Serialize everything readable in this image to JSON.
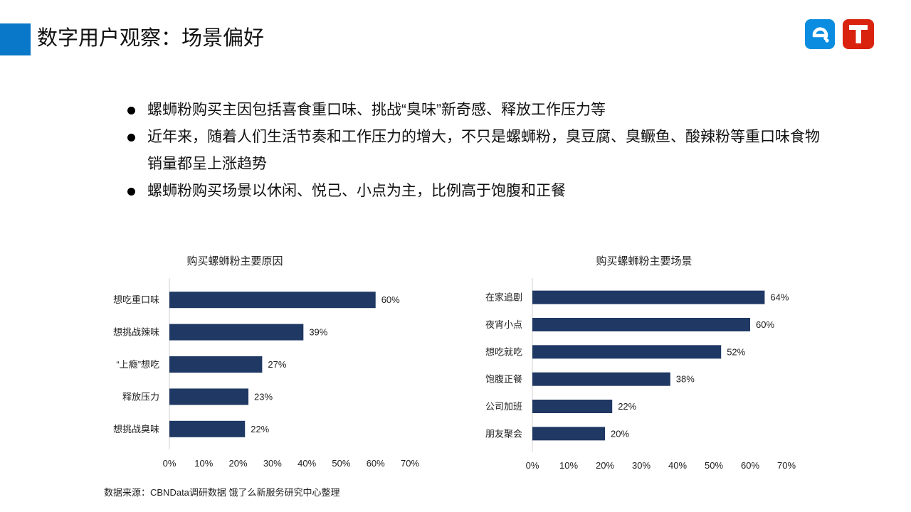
{
  "header": {
    "title": "数字用户观察：场景偏好",
    "accent_color": "#0a78c8",
    "logos": [
      {
        "icon": "eleme-logo-icon",
        "color": "#0a8de0"
      },
      {
        "icon": "t-logo-icon",
        "color": "#d9230f"
      }
    ]
  },
  "bullets": [
    "螺蛳粉购买主因包括喜食重口味、挑战“臭味”新奇感、释放工作压力等",
    "近年来，随着人们生活节奏和工作压力的增大，不只是螺蛳粉，臭豆腐、臭鳜鱼、酸辣粉等重口味食物销量都呈上涨趋势",
    "螺蛳粉购买场景以休闲、悦己、小点为主，比例高于饱腹和正餐"
  ],
  "chart_data": [
    {
      "type": "bar",
      "orientation": "horizontal",
      "title": "购买螺蛳粉主要原因",
      "categories": [
        "想吃重口味",
        "想挑战辣味",
        "“上瘾”想吃",
        "释放压力",
        "想挑战臭味"
      ],
      "values": [
        60,
        39,
        27,
        23,
        22
      ],
      "data_labels": [
        "60%",
        "39%",
        "27%",
        "23%",
        "22%"
      ],
      "xlim": [
        0,
        70
      ],
      "xticks": [
        "0%",
        "10%",
        "20%",
        "30%",
        "40%",
        "50%",
        "60%",
        "70%"
      ],
      "bar_color": "#1f3864",
      "grid": false
    },
    {
      "type": "bar",
      "orientation": "horizontal",
      "title": "购买螺蛳粉主要场景",
      "categories": [
        "在家追剧",
        "夜宵小点",
        "想吃就吃",
        "饱腹正餐",
        "公司加班",
        "朋友聚会"
      ],
      "values": [
        64,
        60,
        52,
        38,
        22,
        20
      ],
      "data_labels": [
        "64%",
        "60%",
        "52%",
        "38%",
        "22%",
        "20%"
      ],
      "xlim": [
        0,
        70
      ],
      "xticks": [
        "0%",
        "10%",
        "20%",
        "30%",
        "40%",
        "50%",
        "60%",
        "70%"
      ],
      "bar_color": "#1f3864",
      "grid": false
    }
  ],
  "source": "数据来源：CBNData调研数据  饿了么新服务研究中心整理"
}
